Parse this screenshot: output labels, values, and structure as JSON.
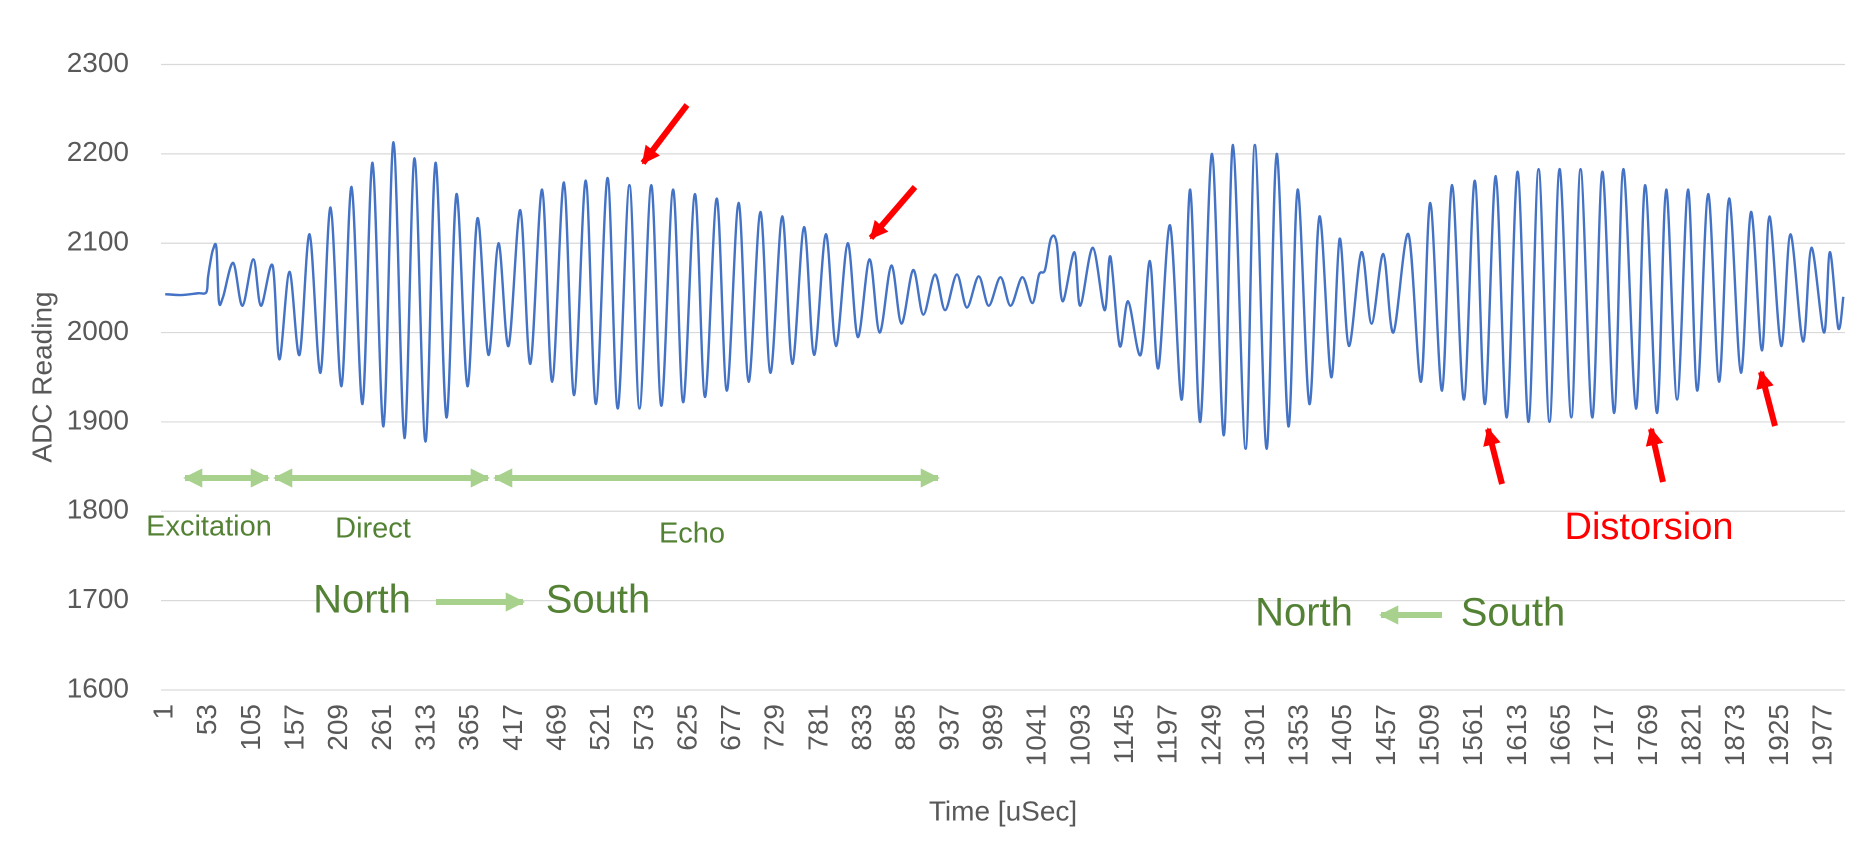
{
  "chart_data": {
    "type": "line",
    "y_label": "ADC Reading",
    "x_label": "Time [uSec]",
    "color": "#4472c4",
    "grid": true,
    "xlim": [
      -4,
      2002
    ],
    "ylim": [
      1600,
      2300
    ],
    "yticks": [
      1600,
      1700,
      1800,
      1900,
      2000,
      2100,
      2200,
      2300
    ],
    "xticks": [
      1,
      53,
      105,
      157,
      209,
      261,
      313,
      365,
      417,
      469,
      521,
      573,
      625,
      677,
      729,
      781,
      833,
      885,
      937,
      989,
      1041,
      1093,
      1145,
      1197,
      1249,
      1301,
      1353,
      1405,
      1457,
      1509,
      1561,
      1613,
      1665,
      1717,
      1769,
      1821,
      1873,
      1925,
      1977
    ],
    "x": [
      1,
      20,
      40,
      50,
      52,
      55,
      58,
      62,
      65,
      70,
      82,
      93,
      106,
      115,
      129,
      137,
      149,
      161,
      173,
      186,
      198,
      211,
      223,
      236,
      248,
      261,
      273,
      286,
      298,
      311,
      323,
      336,
      348,
      361,
      373,
      386,
      398,
      410,
      424,
      436,
      450,
      462,
      476,
      488,
      502,
      514,
      528,
      540,
      554,
      566,
      580,
      592,
      606,
      618,
      632,
      644,
      658,
      670,
      684,
      696,
      710,
      722,
      736,
      748,
      762,
      774,
      788,
      800,
      814,
      826,
      840,
      852,
      866,
      878,
      892,
      904,
      918,
      930,
      944,
      956,
      970,
      982,
      996,
      1008,
      1022,
      1034,
      1042,
      1049,
      1056,
      1063,
      1070,
      1084,
      1091,
      1106,
      1120,
      1127,
      1138,
      1148,
      1163,
      1174,
      1184,
      1198,
      1212,
      1222,
      1234,
      1248,
      1262,
      1273,
      1288,
      1299,
      1313,
      1325,
      1339,
      1350,
      1364,
      1376,
      1390,
      1400,
      1411,
      1426,
      1438,
      1452,
      1464,
      1482,
      1497,
      1508,
      1522,
      1534,
      1548,
      1561,
      1573,
      1586,
      1599,
      1612,
      1625,
      1637,
      1650,
      1662,
      1676,
      1687,
      1701,
      1713,
      1727,
      1738,
      1753,
      1764,
      1778,
      1789,
      1802,
      1815,
      1826,
      1839,
      1852,
      1864,
      1878,
      1890,
      1903,
      1912,
      1926,
      1937,
      1952,
      1962,
      1977,
      1984,
      1994,
      2000
    ],
    "values": [
      2043,
      2042,
      2044,
      2045,
      2062,
      2080,
      2093,
      2095,
      2035,
      2040,
      2078,
      2030,
      2082,
      2030,
      2075,
      1970,
      2068,
      1975,
      2110,
      1955,
      2140,
      1940,
      2163,
      1920,
      2190,
      1895,
      2213,
      1882,
      2195,
      1878,
      2190,
      1905,
      2155,
      1940,
      2128,
      1975,
      2100,
      1985,
      2137,
      1965,
      2160,
      1945,
      2168,
      1930,
      2170,
      1920,
      2173,
      1915,
      2165,
      1915,
      2165,
      1918,
      2160,
      1922,
      2155,
      1928,
      2150,
      1935,
      2145,
      1945,
      2135,
      1955,
      2130,
      1965,
      2118,
      1975,
      2110,
      1985,
      2100,
      1995,
      2082,
      2000,
      2075,
      2010,
      2070,
      2020,
      2065,
      2025,
      2065,
      2028,
      2063,
      2030,
      2062,
      2030,
      2062,
      2033,
      2065,
      2070,
      2105,
      2100,
      2035,
      2090,
      2030,
      2095,
      2025,
      2085,
      1985,
      2035,
      1975,
      2080,
      1960,
      2120,
      1925,
      2160,
      1900,
      2200,
      1885,
      2210,
      1870,
      2210,
      1870,
      2200,
      1895,
      2160,
      1920,
      2130,
      1950,
      2105,
      1985,
      2090,
      2010,
      2088,
      2000,
      2110,
      1945,
      2145,
      1935,
      2165,
      1925,
      2170,
      1920,
      2175,
      1905,
      2180,
      1900,
      2183,
      1900,
      2183,
      1905,
      2183,
      1905,
      2180,
      1910,
      2183,
      1915,
      2165,
      1910,
      2160,
      1925,
      2160,
      1935,
      2155,
      1945,
      2150,
      1955,
      2135,
      1980,
      2130,
      1985,
      2110,
      1990,
      2095,
      2000,
      2090,
      2005,
      2040
    ],
    "annotations": [
      {
        "text": "Excitation",
        "color": "#548235"
      },
      {
        "text": "Direct",
        "color": "#548235"
      },
      {
        "text": "Echo",
        "color": "#548235"
      },
      {
        "text": "North",
        "color": "#548235"
      },
      {
        "text": "South",
        "color": "#548235"
      },
      {
        "text": "North",
        "color": "#548235"
      },
      {
        "text": "South",
        "color": "#548235"
      },
      {
        "text": "Distorsion",
        "color": "#ff0000"
      }
    ]
  }
}
